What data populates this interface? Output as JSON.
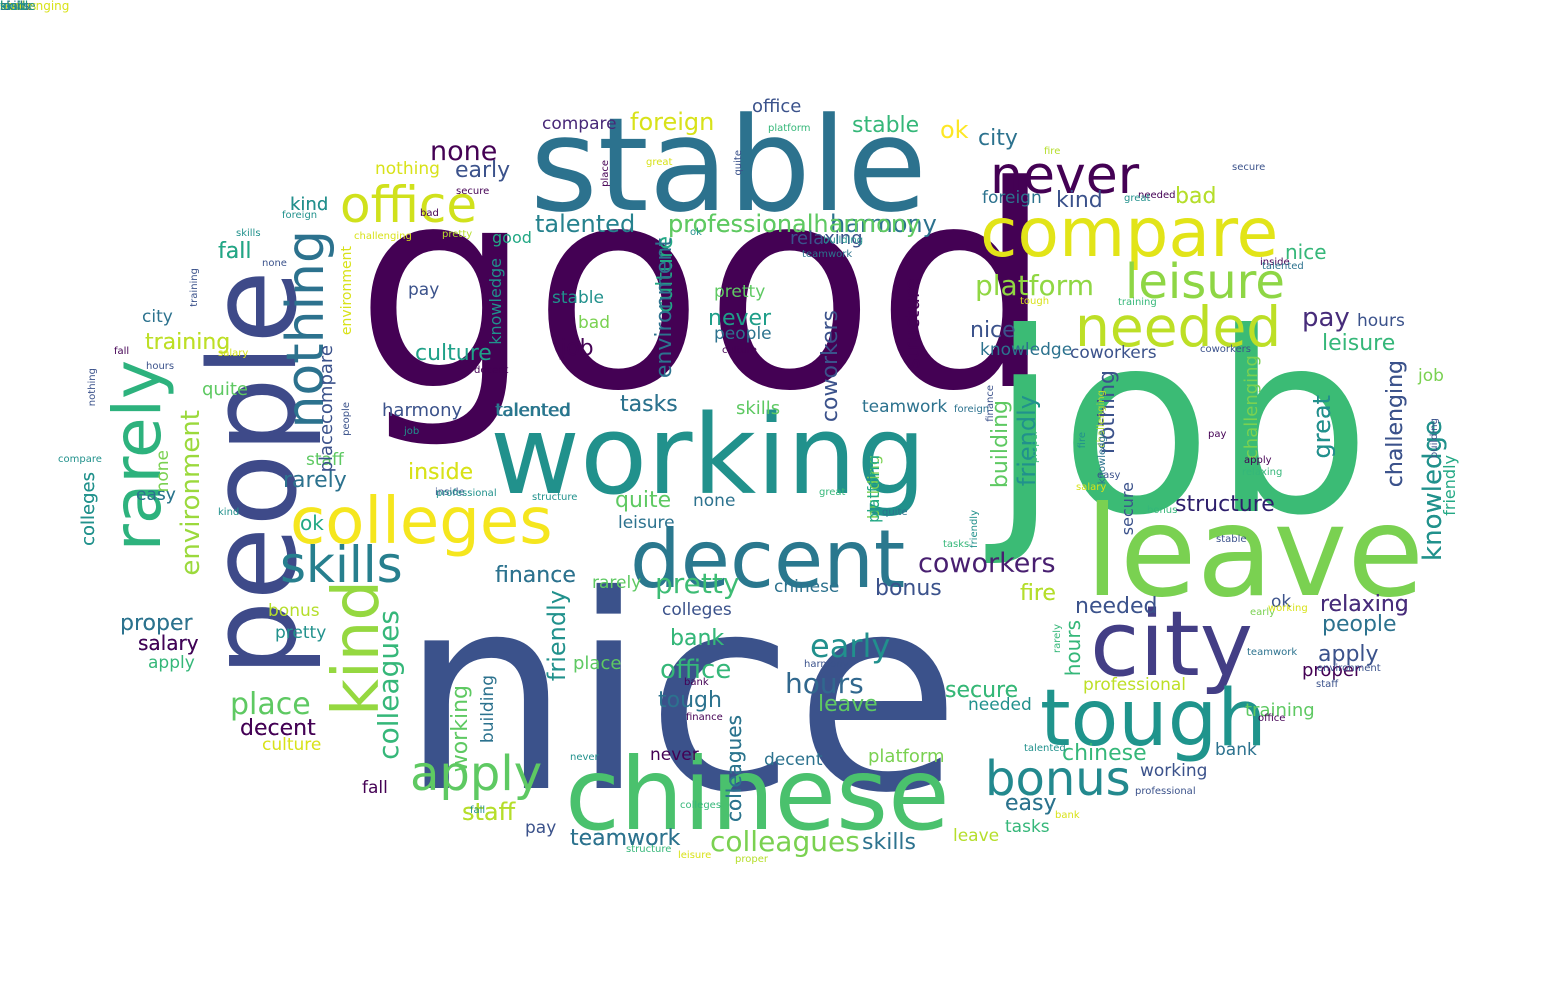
{
  "palette": {
    "dark_purple": "#440154",
    "indigo": "#472d7b",
    "blue": "#3b528b",
    "steel": "#2c728e",
    "teal": "#21918c",
    "sea": "#28ae80",
    "green": "#5ec962",
    "lime": "#addc30",
    "yellow": "#fde725"
  },
  "words": [
    {
      "text": "good",
      "color": "#440154"
    },
    {
      "text": "nice",
      "color": "#3b528b"
    },
    {
      "text": "job",
      "color": "#3bbb75"
    },
    {
      "text": "stable",
      "color": "#2c728e"
    },
    {
      "text": "working",
      "color": "#21918c"
    },
    {
      "text": "people",
      "color": "#3e4a89"
    },
    {
      "text": "leave",
      "color": "#7ad151"
    },
    {
      "text": "chinese",
      "color": "#4ac16d"
    },
    {
      "text": "city",
      "color": "#433e85"
    },
    {
      "text": "decent",
      "color": "#2a788e"
    },
    {
      "text": "tough",
      "color": "#1f948c"
    },
    {
      "text": "compare",
      "color": "#e2e418"
    },
    {
      "text": "colleges",
      "color": "#f5e61e"
    },
    {
      "text": "needed",
      "color": "#bddf26"
    },
    {
      "text": "leisure",
      "color": "#8ed645"
    },
    {
      "text": "rarely",
      "color": "#2db27d"
    },
    {
      "text": "kind",
      "color": "#95d840"
    },
    {
      "text": "skills",
      "color": "#277f8e"
    },
    {
      "text": "office",
      "color": "#d0e11c"
    },
    {
      "text": "never",
      "color": "#440154"
    },
    {
      "text": "nothing",
      "color": "#2c728e"
    },
    {
      "text": "bonus",
      "color": "#23898e"
    },
    {
      "text": "apply",
      "color": "#5ec962"
    },
    {
      "text": "environment",
      "color": "#9bd93c"
    },
    {
      "text": "colleagues",
      "color": "#35b779"
    },
    {
      "text": "hours",
      "color": "#31688e"
    },
    {
      "text": "platform",
      "color": "#90d743"
    },
    {
      "text": "early",
      "color": "#21908d"
    },
    {
      "text": "place",
      "color": "#5ec962"
    },
    {
      "text": "coworkers",
      "color": "#481f70"
    },
    {
      "text": "pretty",
      "color": "#3dbc74"
    },
    {
      "text": "none",
      "color": "#440154"
    },
    {
      "text": "foreign",
      "color": "#d8e219"
    },
    {
      "text": "professional",
      "color": "#6ece58"
    },
    {
      "text": "harmony",
      "color": "#2c728e"
    },
    {
      "text": "talented",
      "color": "#26828e"
    },
    {
      "text": "finance",
      "color": "#2c728e"
    },
    {
      "text": "staff",
      "color": "#bddf26"
    },
    {
      "text": "teamwork",
      "color": "#287d8e"
    },
    {
      "text": "culture",
      "color": "#1fa188"
    },
    {
      "text": "structure",
      "color": "#2d1e6b"
    },
    {
      "text": "training",
      "color": "#c0df25"
    },
    {
      "text": "decent",
      "color": "#470d60"
    },
    {
      "text": "pay",
      "color": "#472c7a"
    },
    {
      "text": "secure",
      "color": "#5ec962"
    },
    {
      "text": "relaxing",
      "color": "#482475"
    },
    {
      "text": "knowledge",
      "color": "#1f9a8a"
    },
    {
      "text": "challenging",
      "color": "#3b528b"
    },
    {
      "text": "great",
      "color": "#2e6e8e"
    },
    {
      "text": "friendly",
      "color": "#2eb37c"
    },
    {
      "text": "building",
      "color": "#5ec962"
    },
    {
      "text": "fire",
      "color": "#a2da37"
    },
    {
      "text": "bad",
      "color": "#b5de2b"
    },
    {
      "text": "ok",
      "color": "#fde725"
    },
    {
      "text": "quite",
      "color": "#5ec962"
    },
    {
      "text": "fall",
      "color": "#2c728e"
    },
    {
      "text": "bank",
      "color": "#2fb47c"
    },
    {
      "text": "salary",
      "color": "#46327e"
    },
    {
      "text": "proper",
      "color": "#277f8e"
    },
    {
      "text": "easy",
      "color": "#24878e"
    },
    {
      "text": "tasks",
      "color": "#2a788e"
    },
    {
      "text": "inside",
      "color": "#d8e219"
    },
    {
      "text": "city",
      "color": "#2c728e"
    },
    {
      "text": "kind",
      "color": "#2c728e"
    },
    {
      "text": "office",
      "color": "#3b528b"
    },
    {
      "text": "compare",
      "color": "#482878"
    },
    {
      "text": "stable",
      "color": "#35b779"
    },
    {
      "text": "early",
      "color": "#3b528b"
    },
    {
      "text": "nothing",
      "color": "#d8e219"
    },
    {
      "text": "professionalharmony",
      "color": "#5ec962"
    },
    {
      "text": "relaxing",
      "color": "#3b528b"
    },
    {
      "text": "talented",
      "color": "#26828e"
    },
    {
      "text": "good",
      "color": "#22a884"
    },
    {
      "text": "pay",
      "color": "#3b528b"
    },
    {
      "text": "stable",
      "color": "#21918c"
    },
    {
      "text": "bad",
      "color": "#7ad151"
    },
    {
      "text": "pretty",
      "color": "#5ec962"
    },
    {
      "text": "never",
      "color": "#1f9e89"
    },
    {
      "text": "people",
      "color": "#2c728e"
    },
    {
      "text": "job",
      "color": "#440154"
    },
    {
      "text": "culture",
      "color": "#22a884"
    },
    {
      "text": "tasks",
      "color": "#2c728e"
    },
    {
      "text": "skills",
      "color": "#5ec962"
    },
    {
      "text": "talented",
      "color": "#2c728e"
    },
    {
      "text": "harmony",
      "color": "#3b528b"
    },
    {
      "text": "teamwork",
      "color": "#2c728e"
    },
    {
      "text": "nice",
      "color": "#3b528b"
    },
    {
      "text": "knowledge",
      "color": "#2c728e"
    },
    {
      "text": "coworkers",
      "color": "#3b528b"
    },
    {
      "text": "foreign",
      "color": "#2c728e"
    },
    {
      "text": "kind",
      "color": "#3b528b"
    },
    {
      "text": "bad",
      "color": "#b5de2b"
    },
    {
      "text": "nice",
      "color": "#35b779"
    },
    {
      "text": "hours",
      "color": "#3b528b"
    },
    {
      "text": "leisure",
      "color": "#35b779"
    },
    {
      "text": "job",
      "color": "#7ad151"
    },
    {
      "text": "fall",
      "color": "#22a884"
    },
    {
      "text": "city",
      "color": "#2c728e"
    },
    {
      "text": "training",
      "color": "#bddf26"
    },
    {
      "text": "rarely",
      "color": "#2c728e"
    },
    {
      "text": "staff",
      "color": "#5ec962"
    },
    {
      "text": "easy",
      "color": "#22a884"
    },
    {
      "text": "ok",
      "color": "#22a884"
    },
    {
      "text": "inside",
      "color": "#d8e219"
    },
    {
      "text": "quite",
      "color": "#5ec962"
    },
    {
      "text": "none",
      "color": "#2c728e"
    },
    {
      "text": "leisure",
      "color": "#2c728e"
    },
    {
      "text": "salary",
      "color": "#3b528b"
    },
    {
      "text": "finance",
      "color": "#2c728e"
    },
    {
      "text": "rarely",
      "color": "#5ec962"
    },
    {
      "text": "chinese",
      "color": "#2c728e"
    },
    {
      "text": "bonus",
      "color": "#3b528b"
    },
    {
      "text": "colleges",
      "color": "#3b528b"
    },
    {
      "text": "bank",
      "color": "#35b779"
    },
    {
      "text": "office",
      "color": "#35b779"
    },
    {
      "text": "tough",
      "color": "#2c728e"
    },
    {
      "text": "place",
      "color": "#5ec962"
    },
    {
      "text": "never",
      "color": "#440154"
    },
    {
      "text": "decent",
      "color": "#2c728e"
    },
    {
      "text": "secure",
      "color": "#35b779"
    },
    {
      "text": "needed",
      "color": "#21918c"
    },
    {
      "text": "leave",
      "color": "#5ec962"
    },
    {
      "text": "platform",
      "color": "#7ad151"
    },
    {
      "text": "fire",
      "color": "#b5de2b"
    },
    {
      "text": "needed",
      "color": "#3b528b"
    },
    {
      "text": "ok",
      "color": "#3b528b"
    },
    {
      "text": "proper",
      "color": "#440154"
    },
    {
      "text": "relaxing",
      "color": "#472c7a"
    },
    {
      "text": "people",
      "color": "#2c728e"
    },
    {
      "text": "apply",
      "color": "#3b528b"
    },
    {
      "text": "professional",
      "color": "#bddf26"
    },
    {
      "text": "training",
      "color": "#5ec962"
    },
    {
      "text": "bank",
      "color": "#2c728e"
    },
    {
      "text": "chinese",
      "color": "#35b779"
    },
    {
      "text": "working",
      "color": "#3b528b"
    },
    {
      "text": "easy",
      "color": "#2c728e"
    },
    {
      "text": "tasks",
      "color": "#35b779"
    },
    {
      "text": "leave",
      "color": "#b5de2b"
    },
    {
      "text": "skills",
      "color": "#2c728e"
    },
    {
      "text": "colleagues",
      "color": "#7ad151"
    },
    {
      "text": "teamwork",
      "color": "#2c728e"
    },
    {
      "text": "pay",
      "color": "#3b528b"
    },
    {
      "text": "staff",
      "color": "#b5de2b"
    },
    {
      "text": "fall",
      "color": "#440154"
    },
    {
      "text": "decent",
      "color": "#440154"
    },
    {
      "text": "culture",
      "color": "#d8e219"
    },
    {
      "text": "pretty",
      "color": "#21918c"
    },
    {
      "text": "apply",
      "color": "#35b779"
    },
    {
      "text": "salary",
      "color": "#440154"
    },
    {
      "text": "proper",
      "color": "#2c728e"
    },
    {
      "text": "bonus",
      "color": "#b5de2b"
    },
    {
      "text": "colleges",
      "color": "#21918c"
    },
    {
      "text": "easy",
      "color": "#2c728e"
    },
    {
      "text": "none",
      "color": "#7ad151"
    },
    {
      "text": "placecompare",
      "color": "#3b528b"
    },
    {
      "text": "environment",
      "color": "#d8e219"
    },
    {
      "text": "knowledge",
      "color": "#21918c"
    },
    {
      "text": "environment",
      "color": "#2c728e"
    },
    {
      "text": "coworkers",
      "color": "#3b528b"
    },
    {
      "text": "structure",
      "color": "#440154"
    },
    {
      "text": "building",
      "color": "#7ad151"
    },
    {
      "text": "friendly",
      "color": "#21918c"
    },
    {
      "text": "nothing",
      "color": "#3b528b"
    },
    {
      "text": "challenging",
      "color": "#3b528b"
    },
    {
      "text": "challenging",
      "color": "#7ad151"
    },
    {
      "text": "knowledge",
      "color": "#21918c"
    },
    {
      "text": "great",
      "color": "#21918c"
    },
    {
      "text": "secure",
      "color": "#3b528b"
    },
    {
      "text": "friendly",
      "color": "#22a884"
    },
    {
      "text": "hours",
      "color": "#35b779"
    },
    {
      "text": "colleagues",
      "color": "#21918c"
    },
    {
      "text": "working",
      "color": "#5ec962"
    },
    {
      "text": "building",
      "color": "#2c728e"
    },
    {
      "text": "friendly",
      "color": "#21918c"
    },
    {
      "text": "platform",
      "color": "#22a884"
    },
    {
      "text": "colleges",
      "color": "#21918c"
    },
    {
      "text": "colleagues",
      "color": "#2c728e"
    },
    {
      "text": "kind",
      "color": "#21918c"
    },
    {
      "text": "foreign",
      "color": "#21918c"
    },
    {
      "text": "bad",
      "color": "#440154"
    },
    {
      "text": "pretty",
      "color": "#b5de2b"
    },
    {
      "text": "challenging",
      "color": "#d8e219"
    },
    {
      "text": "skills",
      "color": "#21918c"
    },
    {
      "text": "none",
      "color": "#3b528b"
    },
    {
      "text": "salary",
      "color": "#d8e219"
    },
    {
      "text": "fall",
      "color": "#440154"
    },
    {
      "text": "hours",
      "color": "#3b528b"
    },
    {
      "text": "nothing",
      "color": "#3b528b"
    },
    {
      "text": "compare",
      "color": "#21918c"
    },
    {
      "text": "training",
      "color": "#3b528b"
    },
    {
      "text": "decent",
      "color": "#440154"
    },
    {
      "text": "inside",
      "color": "#3b528b"
    },
    {
      "text": "professional",
      "color": "#21918c"
    },
    {
      "text": "structure",
      "color": "#21918c"
    },
    {
      "text": "great",
      "color": "#35b779"
    },
    {
      "text": "quite",
      "color": "#2c728e"
    },
    {
      "text": "kind",
      "color": "#21918c"
    },
    {
      "text": "friendly",
      "color": "#21918c"
    },
    {
      "text": "needed",
      "color": "#440154"
    },
    {
      "text": "challenging",
      "color": "#b5de2b"
    },
    {
      "text": "building",
      "color": "#21918c"
    },
    {
      "text": "bonus",
      "color": "#35b779"
    },
    {
      "text": "stable",
      "color": "#3b528b"
    },
    {
      "text": "early",
      "color": "#7ad151"
    },
    {
      "text": "colleges",
      "color": "#35b779"
    },
    {
      "text": "structure",
      "color": "#35b779"
    },
    {
      "text": "leisure",
      "color": "#d8e219"
    },
    {
      "text": "proper",
      "color": "#b5de2b"
    },
    {
      "text": "harmony",
      "color": "#3b528b"
    },
    {
      "text": "bank",
      "color": "#440154"
    },
    {
      "text": "finance",
      "color": "#440154"
    },
    {
      "text": "fall",
      "color": "#21918c"
    },
    {
      "text": "never",
      "color": "#21918c"
    },
    {
      "text": "people",
      "color": "#3b528b"
    },
    {
      "text": "talented",
      "color": "#21918c"
    },
    {
      "text": "bank",
      "color": "#d8e219"
    },
    {
      "text": "professional",
      "color": "#3b528b"
    },
    {
      "text": "teamwork",
      "color": "#2c728e"
    },
    {
      "text": "office",
      "color": "#440154"
    },
    {
      "text": "staff",
      "color": "#3b528b"
    },
    {
      "text": "working",
      "color": "#d8e219"
    },
    {
      "text": "environment",
      "color": "#3b528b"
    },
    {
      "text": "tasks",
      "color": "#35b779"
    },
    {
      "text": "rarely",
      "color": "#35b779"
    },
    {
      "text": "salary",
      "color": "#d8e219"
    },
    {
      "text": "fire",
      "color": "#21918c"
    },
    {
      "text": "relaxing",
      "color": "#35b779"
    },
    {
      "text": "foreign",
      "color": "#2c728e"
    },
    {
      "text": "finance",
      "color": "#3b528b"
    },
    {
      "text": "apply",
      "color": "#440154"
    },
    {
      "text": "easy",
      "color": "#3b528b"
    },
    {
      "text": "secure",
      "color": "#3b528b"
    },
    {
      "text": "inside",
      "color": "#440154"
    },
    {
      "text": "fire",
      "color": "#b5de2b"
    },
    {
      "text": "great",
      "color": "#21918c"
    },
    {
      "text": "quite",
      "color": "#3b528b"
    },
    {
      "text": "place",
      "color": "#440154"
    },
    {
      "text": "great",
      "color": "#d8e219"
    },
    {
      "text": "ok",
      "color": "#21918c"
    },
    {
      "text": "platform",
      "color": "#35b779"
    },
    {
      "text": "training",
      "color": "#35b779"
    },
    {
      "text": "tough",
      "color": "#d8e219"
    },
    {
      "text": "talented",
      "color": "#2c728e"
    },
    {
      "text": "culture",
      "color": "#440154"
    },
    {
      "text": "job",
      "color": "#21918c"
    },
    {
      "text": "coworkers",
      "color": "#3b528b"
    },
    {
      "text": "pay",
      "color": "#440154"
    },
    {
      "text": "building",
      "color": "#3b528b"
    },
    {
      "text": "knowledge",
      "color": "#2c728e"
    },
    {
      "text": "proper",
      "color": "#35b779"
    },
    {
      "text": "teamwork",
      "color": "#2c728e"
    },
    {
      "text": "secure",
      "color": "#440154"
    },
    {
      "text": "nice",
      "color": "#3b528b"
    },
    {
      "text": "tasks",
      "color": "#35b779"
    },
    {
      "text": "leave",
      "color": "#3b528b"
    },
    {
      "text": "bonus",
      "color": "#d8e219"
    },
    {
      "text": "challenging",
      "color": "#d8e219"
    },
    {
      "text": "skills",
      "color": "#2c728e"
    },
    {
      "text": "kind",
      "color": "#21918c"
    },
    {
      "text": "inside",
      "color": "#21918c"
    }
  ]
}
